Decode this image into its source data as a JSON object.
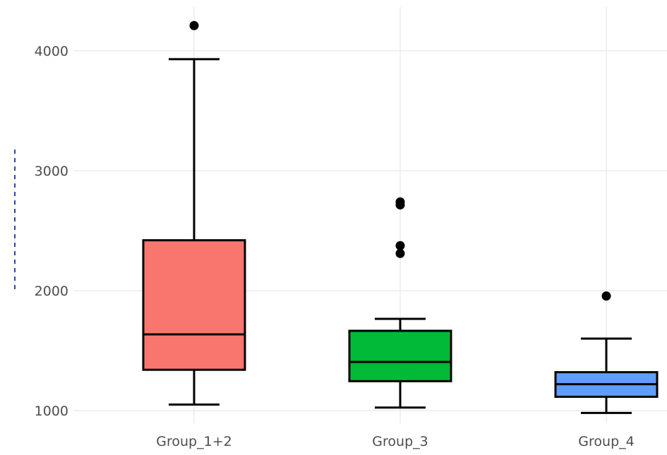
{
  "chart_data": {
    "type": "box",
    "title": "",
    "xlabel": "",
    "ylabel": "",
    "ylim": [
      970,
      4350
    ],
    "y_ticks": [
      1000,
      2000,
      3000,
      4000
    ],
    "grid": true,
    "legend": "none",
    "categories": [
      "Group_1+2",
      "Group_3",
      "Group_4"
    ],
    "boxes": [
      {
        "category": "Group_1+2",
        "color": "#F8766D",
        "whisker_low": 1050,
        "q1": 1340,
        "median": 1635,
        "q3": 2420,
        "whisker_high": 3930,
        "outliers": [
          4210
        ]
      },
      {
        "category": "Group_3",
        "color": "#00BA38",
        "whisker_low": 1025,
        "q1": 1245,
        "median": 1405,
        "q3": 1665,
        "whisker_high": 1765,
        "outliers": [
          2310,
          2375,
          2715,
          2740
        ]
      },
      {
        "category": "Group_4",
        "color": "#619CFF",
        "whisker_low": 980,
        "q1": 1115,
        "median": 1220,
        "q3": 1320,
        "whisker_high": 1600,
        "outliers": [
          1955
        ]
      }
    ]
  }
}
